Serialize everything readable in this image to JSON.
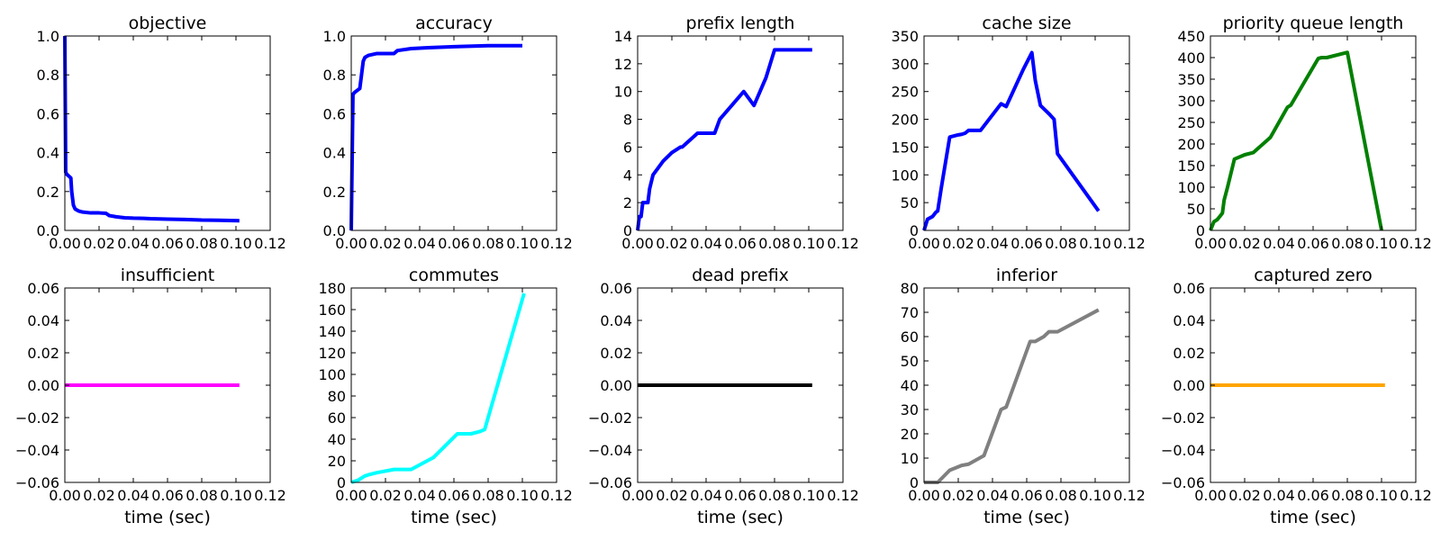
{
  "chart_data": [
    {
      "type": "line",
      "title": "objective",
      "xlabel": "",
      "ylabel": "",
      "xlim": [
        0,
        0.12
      ],
      "ylim": [
        0,
        1.0
      ],
      "grid": false,
      "color": "#0000ff",
      "xticks": [
        "0.00",
        "0.02",
        "0.04",
        "0.06",
        "0.08",
        "0.10",
        "0.12"
      ],
      "yticks": [
        "0.0",
        "0.2",
        "0.4",
        "0.6",
        "0.8",
        "1.0"
      ],
      "x": [
        0.0,
        0.0005,
        0.001,
        0.0035,
        0.004,
        0.005,
        0.006,
        0.008,
        0.01,
        0.015,
        0.02,
        0.024,
        0.026,
        0.03,
        0.035,
        0.04,
        0.046,
        0.05,
        0.06,
        0.07,
        0.08,
        0.09,
        0.102
      ],
      "y": [
        1.0,
        0.3,
        0.29,
        0.27,
        0.2,
        0.13,
        0.11,
        0.1,
        0.095,
        0.09,
        0.09,
        0.088,
        0.076,
        0.07,
        0.065,
        0.063,
        0.062,
        0.06,
        0.058,
        0.056,
        0.053,
        0.052,
        0.05
      ]
    },
    {
      "type": "line",
      "title": "accuracy",
      "xlabel": "",
      "ylabel": "",
      "xlim": [
        0,
        0.12
      ],
      "ylim": [
        0,
        1.0
      ],
      "grid": false,
      "color": "#0000ff",
      "xticks": [
        "0.00",
        "0.02",
        "0.04",
        "0.06",
        "0.08",
        "0.10",
        "0.12"
      ],
      "yticks": [
        "0.0",
        "0.2",
        "0.4",
        "0.6",
        "0.8",
        "1.0"
      ],
      "x": [
        0.0,
        0.001,
        0.002,
        0.005,
        0.007,
        0.008,
        0.01,
        0.015,
        0.02,
        0.025,
        0.027,
        0.035,
        0.045,
        0.06,
        0.08,
        0.1
      ],
      "y": [
        0.0,
        0.7,
        0.71,
        0.73,
        0.87,
        0.89,
        0.9,
        0.91,
        0.91,
        0.91,
        0.925,
        0.935,
        0.94,
        0.945,
        0.95,
        0.95
      ]
    },
    {
      "type": "line",
      "title": "prefix length",
      "xlabel": "",
      "ylabel": "",
      "xlim": [
        0,
        0.12
      ],
      "ylim": [
        0,
        14
      ],
      "grid": false,
      "color": "#0000ff",
      "xticks": [
        "0.00",
        "0.02",
        "0.04",
        "0.06",
        "0.08",
        "0.10",
        "0.12"
      ],
      "yticks": [
        "0",
        "2",
        "4",
        "6",
        "8",
        "10",
        "12",
        "14"
      ],
      "x": [
        0.0,
        0.001,
        0.002,
        0.003,
        0.006,
        0.007,
        0.009,
        0.015,
        0.02,
        0.025,
        0.026,
        0.035,
        0.045,
        0.048,
        0.062,
        0.068,
        0.075,
        0.08,
        0.102
      ],
      "y": [
        0,
        1,
        1,
        2,
        2,
        3,
        4,
        5,
        5.6,
        6,
        6,
        7,
        7,
        8,
        10,
        9,
        11,
        13,
        13
      ]
    },
    {
      "type": "line",
      "title": "cache size",
      "xlabel": "",
      "ylabel": "",
      "xlim": [
        0,
        0.12
      ],
      "ylim": [
        0,
        350
      ],
      "grid": false,
      "color": "#0000ff",
      "xticks": [
        "0.00",
        "0.02",
        "0.04",
        "0.06",
        "0.08",
        "0.10",
        "0.12"
      ],
      "yticks": [
        "0",
        "50",
        "100",
        "150",
        "200",
        "250",
        "300",
        "350"
      ],
      "x": [
        0.0,
        0.002,
        0.005,
        0.007,
        0.008,
        0.01,
        0.015,
        0.02,
        0.022,
        0.024,
        0.026,
        0.028,
        0.033,
        0.045,
        0.048,
        0.058,
        0.063,
        0.065,
        0.068,
        0.073,
        0.076,
        0.078,
        0.102
      ],
      "y": [
        0,
        20,
        25,
        33,
        35,
        75,
        168,
        172,
        173,
        175,
        180,
        180,
        180,
        228,
        223,
        290,
        320,
        270,
        225,
        210,
        200,
        138,
        35
      ]
    },
    {
      "type": "line",
      "title": "priority queue length",
      "xlabel": "",
      "ylabel": "",
      "xlim": [
        0,
        0.12
      ],
      "ylim": [
        0,
        450
      ],
      "grid": false,
      "color": "#008000",
      "xticks": [
        "0.00",
        "0.02",
        "0.04",
        "0.06",
        "0.08",
        "0.10",
        "0.12"
      ],
      "yticks": [
        "0",
        "50",
        "100",
        "150",
        "200",
        "250",
        "300",
        "350",
        "400",
        "450"
      ],
      "x": [
        0.0,
        0.002,
        0.004,
        0.006,
        0.007,
        0.008,
        0.01,
        0.014,
        0.02,
        0.025,
        0.035,
        0.045,
        0.047,
        0.063,
        0.065,
        0.068,
        0.078,
        0.08,
        0.1
      ],
      "y": [
        0,
        20,
        25,
        35,
        40,
        70,
        100,
        165,
        175,
        180,
        215,
        285,
        290,
        398,
        400,
        400,
        410,
        412,
        0
      ]
    },
    {
      "type": "line",
      "title": "insufficient",
      "xlabel": "time (sec)",
      "ylabel": "",
      "xlim": [
        0,
        0.12
      ],
      "ylim": [
        -0.06,
        0.06
      ],
      "grid": false,
      "color": "#ff00ff",
      "xticks": [
        "0.00",
        "0.02",
        "0.04",
        "0.06",
        "0.08",
        "0.10",
        "0.12"
      ],
      "yticks": [
        "−0.06",
        "−0.04",
        "−0.02",
        "0.00",
        "0.02",
        "0.04",
        "0.06"
      ],
      "x": [
        0.0,
        0.102
      ],
      "y": [
        0,
        0
      ]
    },
    {
      "type": "line",
      "title": "commutes",
      "xlabel": "time (sec)",
      "ylabel": "",
      "xlim": [
        0,
        0.12
      ],
      "ylim": [
        0,
        180
      ],
      "grid": false,
      "color": "#00ffff",
      "xticks": [
        "0.00",
        "0.02",
        "0.04",
        "0.06",
        "0.08",
        "0.10",
        "0.12"
      ],
      "yticks": [
        "0",
        "20",
        "40",
        "60",
        "80",
        "100",
        "120",
        "140",
        "160",
        "180"
      ],
      "x": [
        0.0,
        0.002,
        0.004,
        0.008,
        0.01,
        0.015,
        0.025,
        0.035,
        0.048,
        0.062,
        0.065,
        0.07,
        0.075,
        0.078,
        0.101
      ],
      "y": [
        0,
        1,
        2,
        6,
        7,
        9,
        12,
        12,
        23,
        45,
        45,
        45,
        47,
        49,
        175
      ]
    },
    {
      "type": "line",
      "title": "dead prefix",
      "xlabel": "time (sec)",
      "ylabel": "",
      "xlim": [
        0,
        0.12
      ],
      "ylim": [
        -0.06,
        0.06
      ],
      "grid": false,
      "color": "#000000",
      "xticks": [
        "0.00",
        "0.02",
        "0.04",
        "0.06",
        "0.08",
        "0.10",
        "0.12"
      ],
      "yticks": [
        "−0.06",
        "−0.04",
        "−0.02",
        "0.00",
        "0.02",
        "0.04",
        "0.06"
      ],
      "x": [
        0.0,
        0.102
      ],
      "y": [
        0,
        0
      ]
    },
    {
      "type": "line",
      "title": "inferior",
      "xlabel": "time (sec)",
      "ylabel": "",
      "xlim": [
        0,
        0.12
      ],
      "ylim": [
        0,
        80
      ],
      "grid": false,
      "color": "#808080",
      "xticks": [
        "0.00",
        "0.02",
        "0.04",
        "0.06",
        "0.08",
        "0.10",
        "0.12"
      ],
      "yticks": [
        "0",
        "10",
        "20",
        "30",
        "40",
        "50",
        "60",
        "70",
        "80"
      ],
      "x": [
        0.0,
        0.008,
        0.015,
        0.022,
        0.026,
        0.035,
        0.045,
        0.048,
        0.062,
        0.065,
        0.07,
        0.073,
        0.078,
        0.102
      ],
      "y": [
        0,
        0,
        5,
        7,
        7.5,
        11,
        30,
        31,
        58,
        58,
        60,
        62,
        62,
        71
      ]
    },
    {
      "type": "line",
      "title": "captured zero",
      "xlabel": "time (sec)",
      "ylabel": "",
      "xlim": [
        0,
        0.12
      ],
      "ylim": [
        -0.06,
        0.06
      ],
      "grid": false,
      "color": "#ffa500",
      "xticks": [
        "0.00",
        "0.02",
        "0.04",
        "0.06",
        "0.08",
        "0.10",
        "0.12"
      ],
      "yticks": [
        "−0.06",
        "−0.04",
        "−0.02",
        "0.00",
        "0.02",
        "0.04",
        "0.06"
      ],
      "x": [
        0.0,
        0.102
      ],
      "y": [
        0,
        0
      ]
    }
  ]
}
